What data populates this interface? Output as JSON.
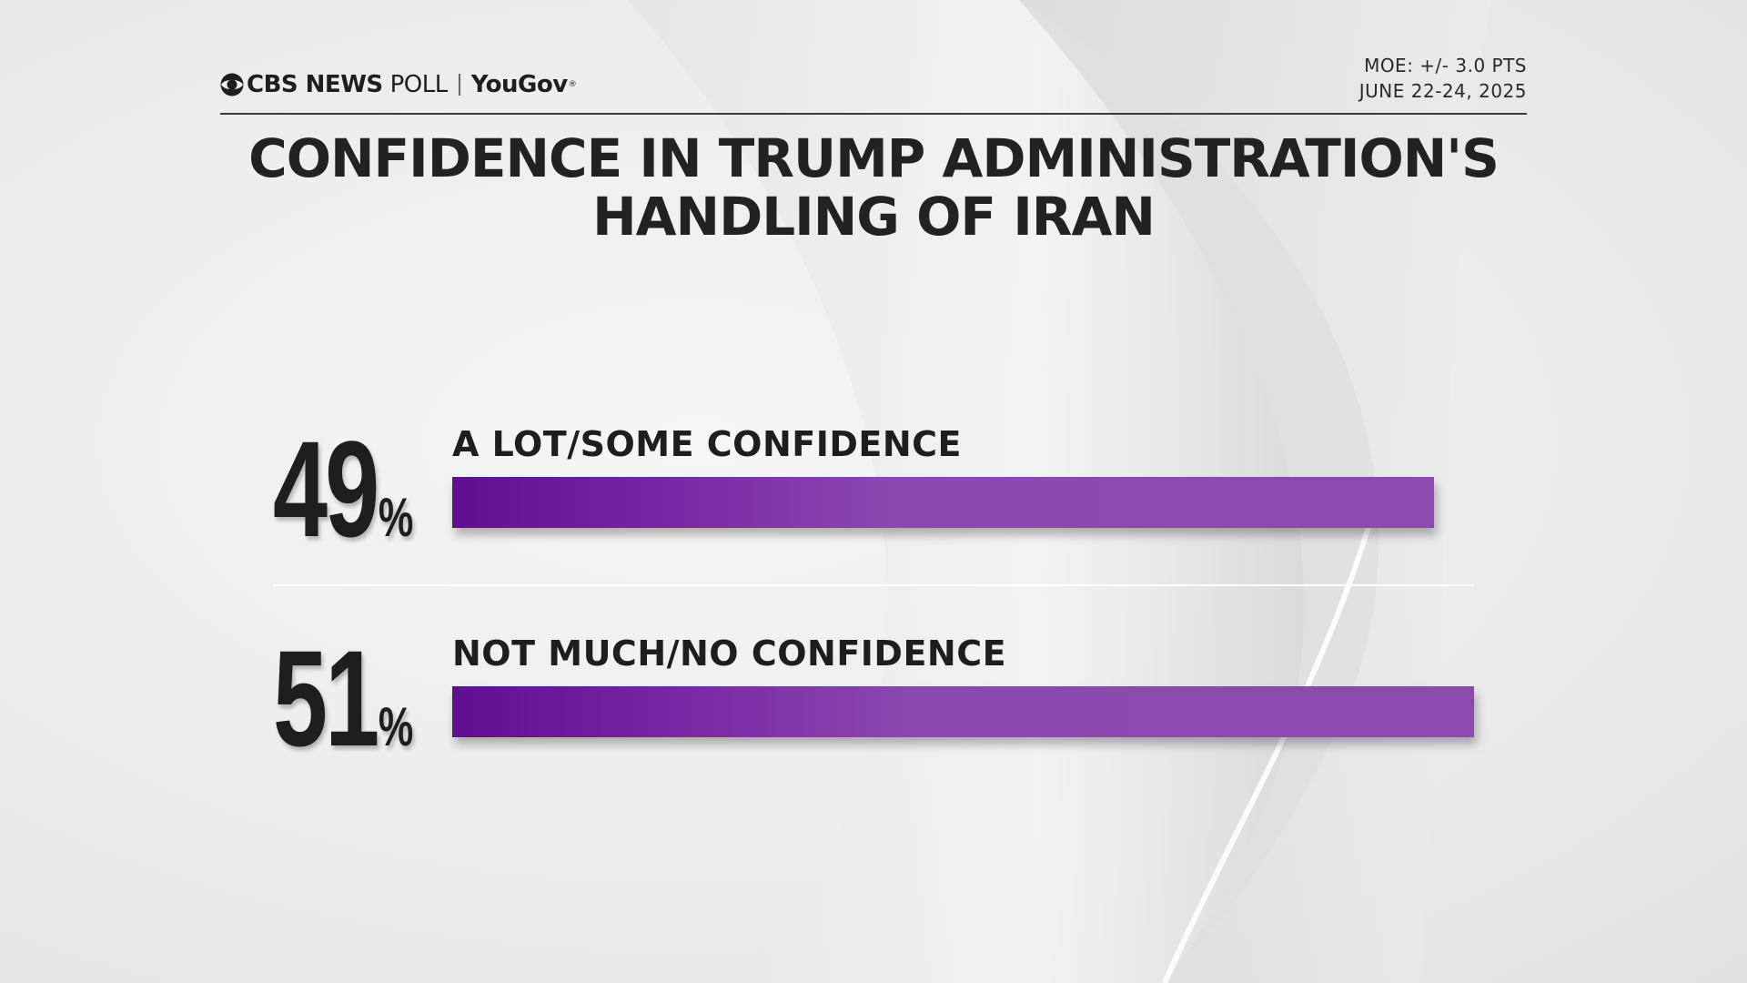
{
  "header": {
    "logo_cbs": "CBS NEWS",
    "logo_poll": "POLL",
    "logo_yougov": "YouGov",
    "logo_reg": "®",
    "moe": "MOE: +/- 3.0 PTS",
    "date": "JUNE 22-24, 2025"
  },
  "colors": {
    "bar": "#8c4aaf",
    "bar_dark": "#5f0f8f",
    "text": "#1e1e1e"
  },
  "chart_data": {
    "type": "bar",
    "orientation": "horizontal",
    "title": "CONFIDENCE IN TRUMP ADMINISTRATION'S HANDLING OF IRAN",
    "title_line1": "CONFIDENCE IN TRUMP ADMINISTRATION'S",
    "title_line2": "HANDLING OF IRAN",
    "xlim": [
      0,
      51
    ],
    "categories": [
      "A LOT/SOME CONFIDENCE",
      "NOT MUCH/NO CONFIDENCE"
    ],
    "values": [
      49,
      51
    ],
    "unit": "%",
    "bars": [
      {
        "label": "A LOT/SOME CONFIDENCE",
        "value": 49,
        "value_text": "49",
        "unit": "%"
      },
      {
        "label": "NOT MUCH/NO CONFIDENCE",
        "value": 51,
        "value_text": "51",
        "unit": "%"
      }
    ]
  }
}
